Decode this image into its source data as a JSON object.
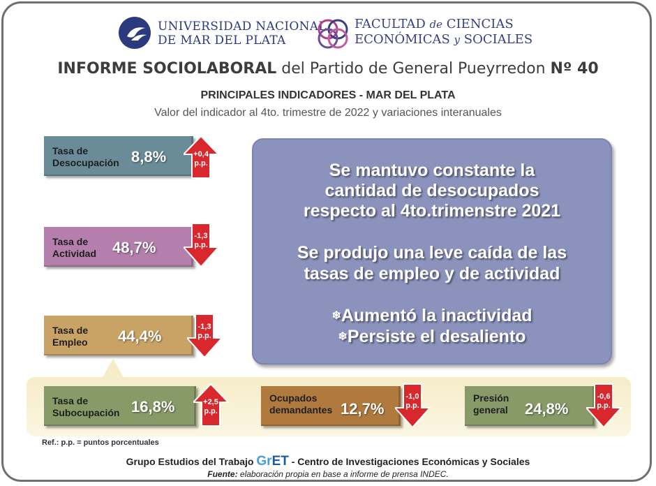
{
  "header": {
    "university_line1": "UNIVERSIDAD NACIONAL",
    "university_line2": "DE MAR DEL PLATA",
    "faculty_line1_a": "FACULTAD ",
    "faculty_line1_b": "de",
    "faculty_line1_c": " CIENCIAS",
    "faculty_line2_a": "ECONÓMICAS ",
    "faculty_line2_b": "y",
    "faculty_line2_c": " SOCIALES"
  },
  "title": {
    "bold_part": "INFORME SOCIOLABORAL",
    "normal_part": " del Partido de General Pueyrredon ",
    "number": "Nº 40"
  },
  "subtitle": "PRINCIPALES INDICADORES - MAR DEL PLATA",
  "subtitle2": "Valor del indicador al 4to. trimestre de 2022 y variaciones interanuales",
  "indicators": [
    {
      "label1": "Tasa de",
      "label2": "Desocupación",
      "value": "8,8%",
      "change1": "+0,4",
      "change2": "p.p.",
      "direction": "up",
      "color": "#6a8c99"
    },
    {
      "label1": "Tasa de",
      "label2": "Actividad",
      "value": "48,7%",
      "change1": "-1,3",
      "change2": "p.p.",
      "direction": "down",
      "color": "#b47fac"
    },
    {
      "label1": "Tasa de",
      "label2": "Empleo",
      "value": "44,4%",
      "change1": "-1,3",
      "change2": "p.p.",
      "direction": "down",
      "color": "#c9a365"
    },
    {
      "label1": "Tasa de",
      "label2": "Subocupación",
      "value": "16,8%",
      "change1": "+2,5",
      "change2": "p.p.",
      "direction": "up",
      "color": "#879a68"
    },
    {
      "label1": "Ocupados",
      "label2": "demandantes",
      "value": "12,7%",
      "change1": "-1,0",
      "change2": "p.p.",
      "direction": "down",
      "color": "#b07a3e"
    },
    {
      "label1": "Presión",
      "label2": "general",
      "value": "24,8%",
      "change1": "-0,6",
      "change2": "p.p.",
      "direction": "down",
      "color": "#879a68"
    }
  ],
  "summary": {
    "line1": "Se mantuvo constante la",
    "line2": "cantidad de desocupados",
    "line3": "respecto al 4to.trimenstre 2021",
    "line4": "Se produjo una leve caída de las",
    "line5": "tasas de empleo y de actividad",
    "bullet_symbol": "❄",
    "line6": "Aumentó la inactividad",
    "line7": "Persiste el desaliento"
  },
  "reference": "Ref.: p.p. = puntos porcentuales",
  "footer": {
    "group_a": "Grupo Estudios del Trabajo ",
    "gret_a": "Gr",
    "gret_b": "ET",
    "group_b": " - Centro de Investigaciones Económicas y Sociales",
    "source_label": "Fuente:",
    "source_text": " elaboración propia en base a informe de prensa INDEC."
  },
  "colors": {
    "arrow_red": "#d9272e",
    "summary_bg": "#8b92bc",
    "band_bg": "#f5ecc8"
  }
}
